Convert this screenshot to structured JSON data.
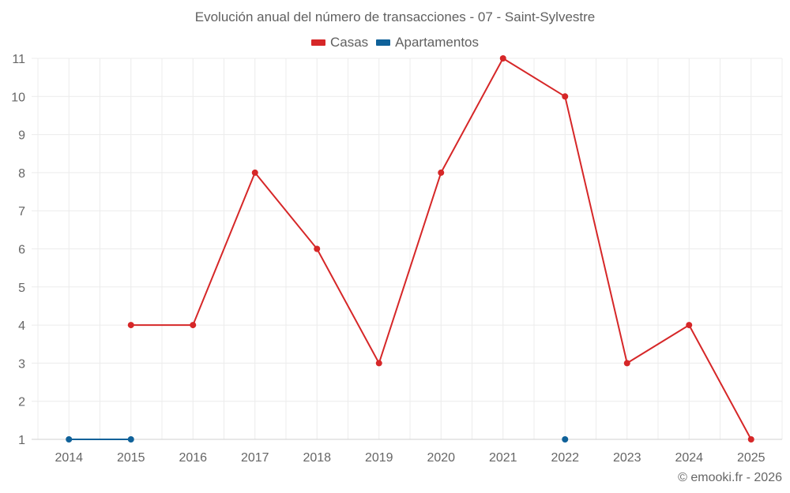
{
  "title": "Evolución anual del número de transacciones - 07 - Saint-Sylvestre",
  "legend": [
    {
      "label": "Casas",
      "color": "#d62728"
    },
    {
      "label": "Apartamentos",
      "color": "#0f6199"
    }
  ],
  "credit": "© emooki.fr - 2026",
  "chart_data": {
    "type": "line",
    "title": "Evolución anual del número de transacciones - 07 - Saint-Sylvestre",
    "xlabel": "",
    "ylabel": "",
    "categories": [
      "2014",
      "2015",
      "2016",
      "2017",
      "2018",
      "2019",
      "2020",
      "2021",
      "2022",
      "2023",
      "2024",
      "2025"
    ],
    "series": [
      {
        "name": "Casas",
        "color": "#d62728",
        "values": [
          null,
          4,
          4,
          8,
          6,
          3,
          8,
          11,
          10,
          3,
          4,
          1
        ]
      },
      {
        "name": "Apartamentos",
        "color": "#0f6199",
        "values": [
          1,
          1,
          null,
          null,
          null,
          null,
          null,
          null,
          1,
          null,
          null,
          null
        ]
      }
    ],
    "ylim": [
      1,
      11
    ],
    "yticks": [
      1,
      2,
      3,
      4,
      5,
      6,
      7,
      8,
      9,
      10,
      11
    ],
    "grid": true,
    "legend_position": "top"
  }
}
